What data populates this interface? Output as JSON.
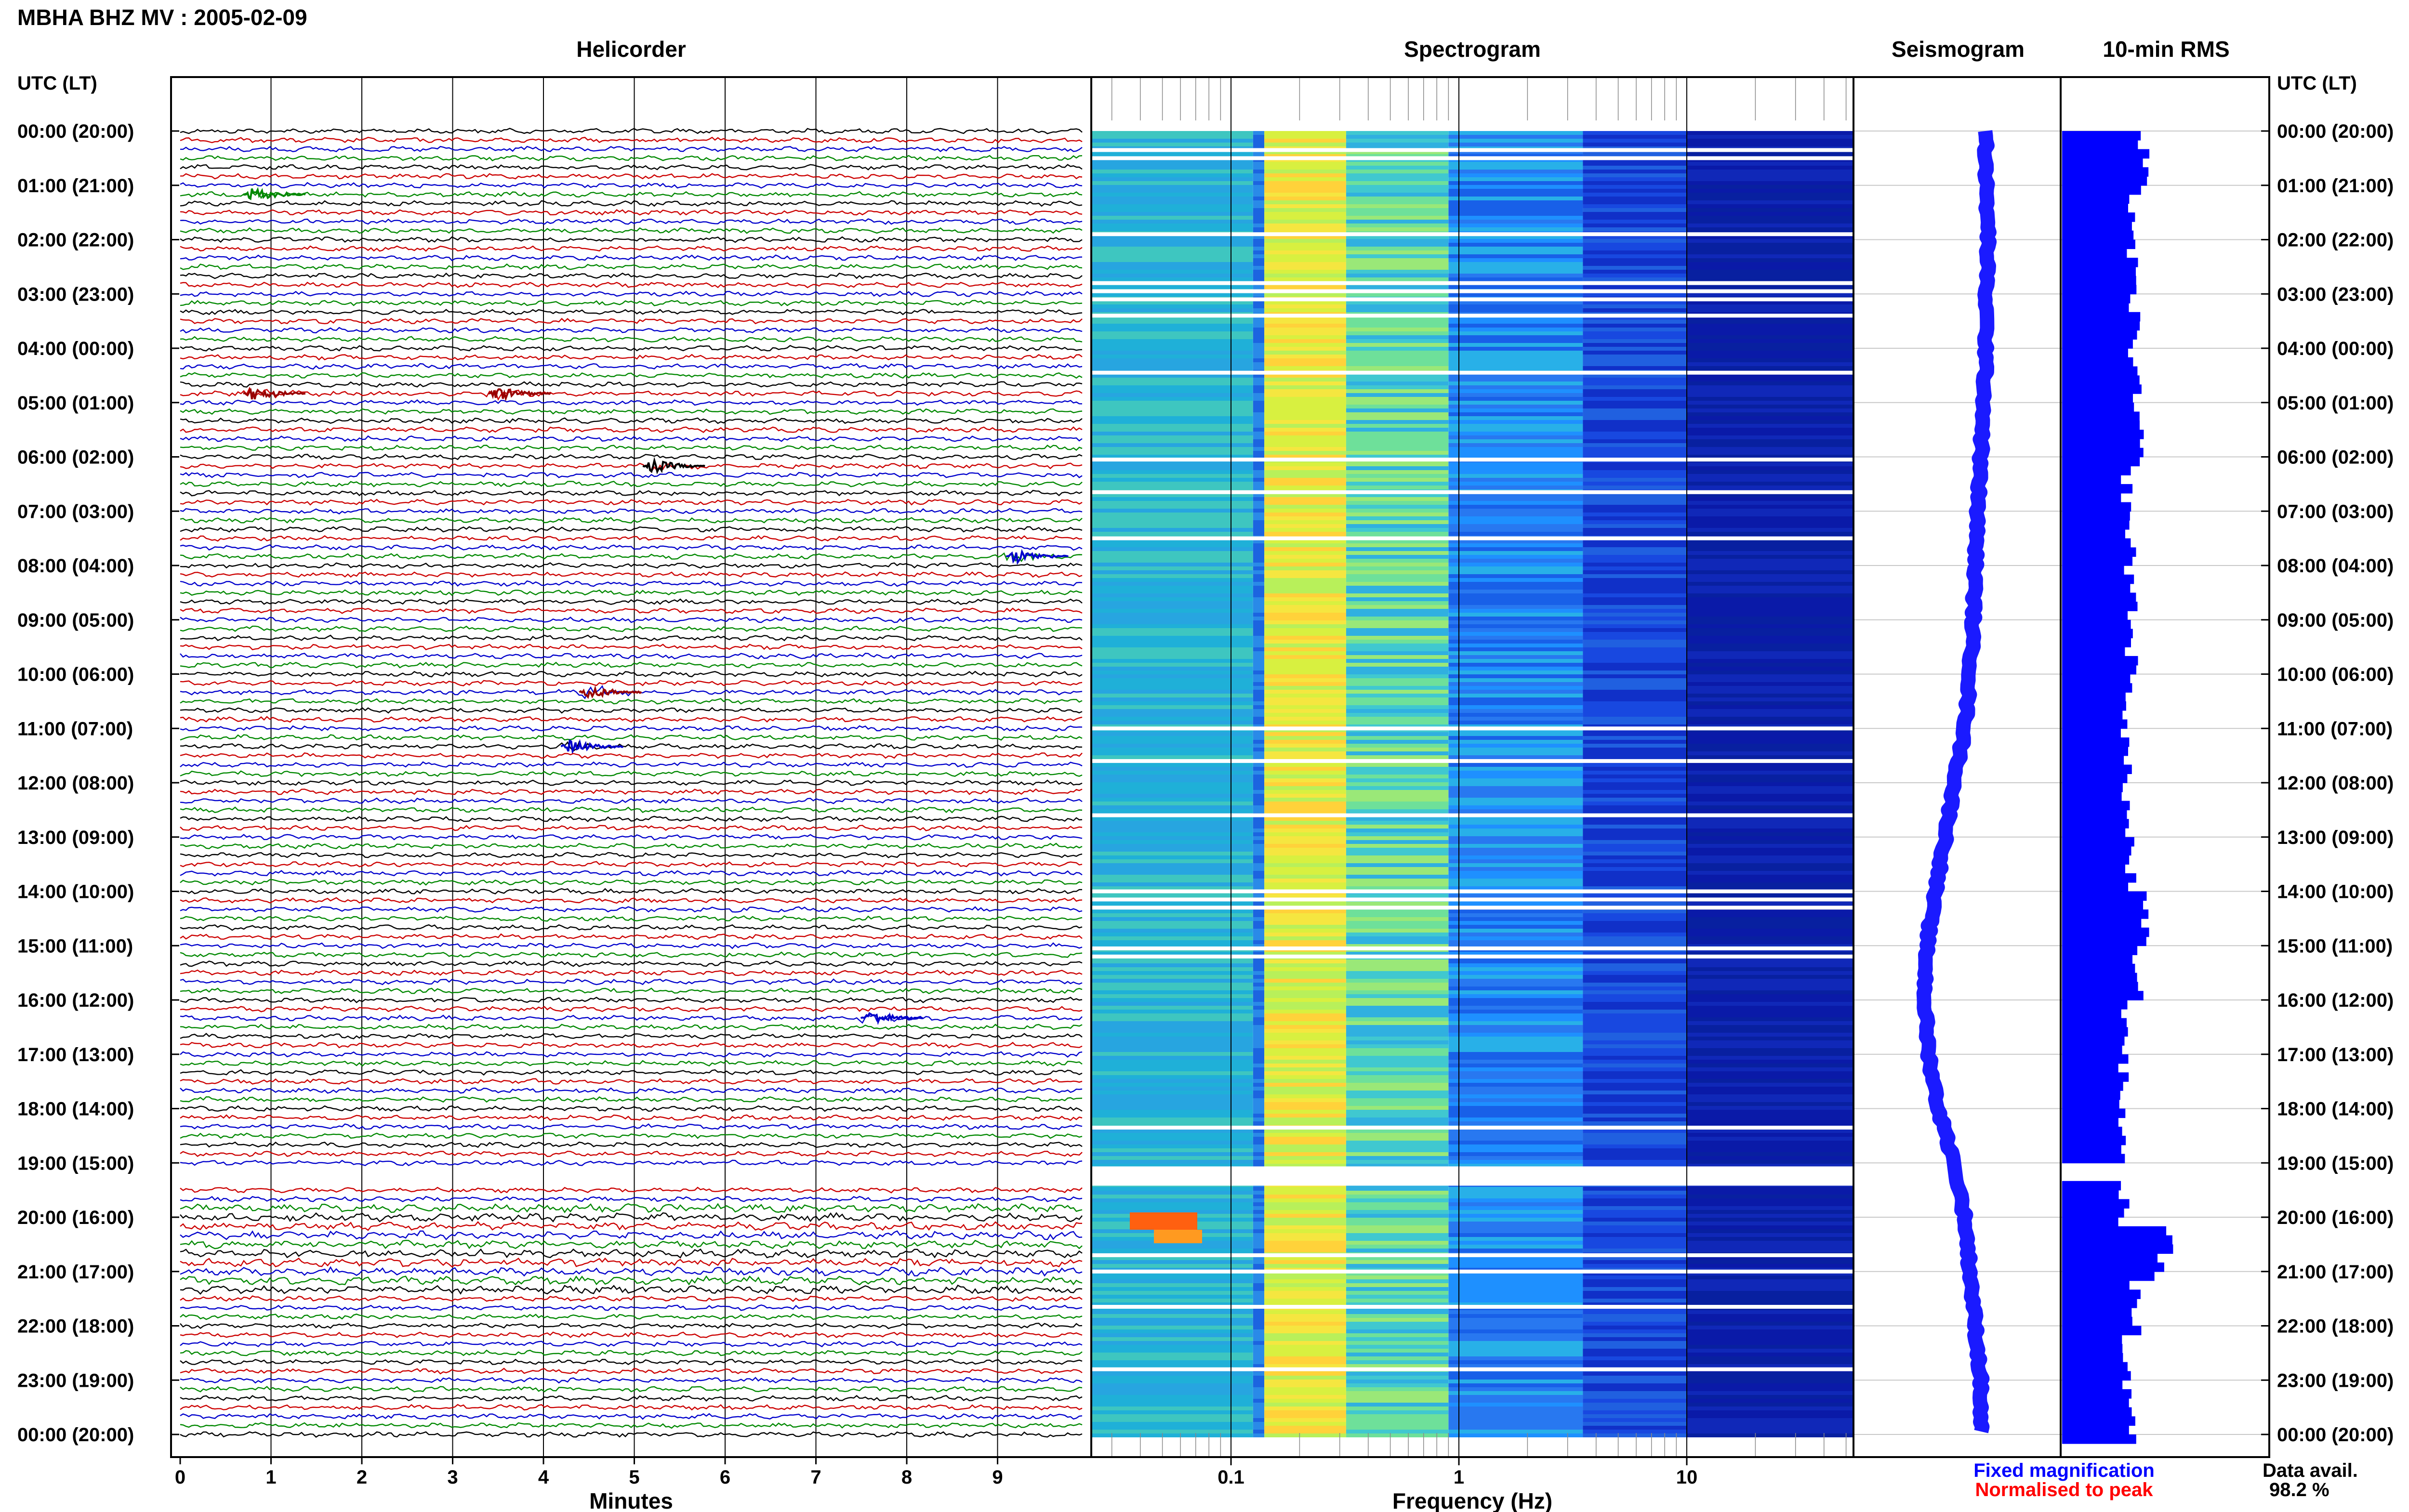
{
  "title": "MBHA BHZ MV : 2005-02-09",
  "panels": {
    "helicorder": "Helicorder",
    "spectrogram": "Spectrogram",
    "seismogram": "Seismogram",
    "rms": "10-min RMS"
  },
  "time_axis_label": "UTC (LT)",
  "time_labels": [
    "00:00 (20:00)",
    "01:00 (21:00)",
    "02:00 (22:00)",
    "03:00 (23:00)",
    "04:00 (00:00)",
    "05:00 (01:00)",
    "06:00 (02:00)",
    "07:00 (03:00)",
    "08:00 (04:00)",
    "09:00 (05:00)",
    "10:00 (06:00)",
    "11:00 (07:00)",
    "12:00 (08:00)",
    "13:00 (09:00)",
    "14:00 (10:00)",
    "15:00 (11:00)",
    "16:00 (12:00)",
    "17:00 (13:00)",
    "18:00 (14:00)",
    "19:00 (15:00)",
    "20:00 (16:00)",
    "21:00 (17:00)",
    "22:00 (18:00)",
    "23:00 (19:00)",
    "00:00 (20:00)"
  ],
  "x_axes": {
    "minutes": {
      "label": "Minutes",
      "ticks": [
        "0",
        "1",
        "2",
        "3",
        "4",
        "5",
        "6",
        "7",
        "8",
        "9"
      ]
    },
    "frequency": {
      "label": "Frequency (Hz)",
      "ticks": [
        "0.1",
        "1",
        "10"
      ],
      "scale": "log"
    }
  },
  "legend": {
    "fixed": "Fixed magnification",
    "normalised": "Normalised to peak",
    "fixed_color": "#0000ff",
    "normalised_color": "#ff0000"
  },
  "data_avail": {
    "label": "Data avail.",
    "value": "98.2 %"
  },
  "chart_data": {
    "type": "composite",
    "trace_colors": [
      "#000000",
      "#cc0000",
      "#0000cc",
      "#008800"
    ],
    "rows_per_hour": 6,
    "events": [
      {
        "row": 7,
        "minute": 0.8,
        "color": "green"
      },
      {
        "row": 29,
        "minute": 0.8,
        "color": "darkred"
      },
      {
        "row": 29,
        "minute": 3.5,
        "color": "darkred"
      },
      {
        "row": 37,
        "minute": 5.2,
        "color": "black"
      },
      {
        "row": 47,
        "minute": 9.2,
        "color": "blue"
      },
      {
        "row": 62,
        "minute": 4.5,
        "color": "darkred"
      },
      {
        "row": 68,
        "minute": 4.3,
        "color": "blue"
      },
      {
        "row": 98,
        "minute": 7.6,
        "color": "blue"
      }
    ],
    "data_gap_rows": [
      115,
      116
    ],
    "seismogram_offset": [
      0.1,
      0.1,
      0.12,
      0.1,
      0.1,
      0.08,
      0.05,
      0.02,
      0.0,
      -0.02,
      -0.05,
      -0.1,
      -0.2,
      -0.28,
      -0.38,
      -0.46,
      -0.48,
      -0.44,
      -0.35,
      -0.2,
      -0.1,
      -0.05,
      0.0,
      0.05,
      0.05
    ],
    "rms_values": [
      0.55,
      0.5,
      0.48,
      0.5,
      0.5,
      0.52,
      0.45,
      0.47,
      0.49,
      0.48,
      0.46,
      0.44,
      0.45,
      0.47,
      0.55,
      0.52,
      0.45,
      0.42,
      0.42,
      0.43,
      0.7,
      0.5,
      0.45,
      0.48,
      0.43
    ],
    "spectrogram_gap_hours": [
      0.35,
      0.5,
      1.9,
      2.8,
      2.95,
      3.1,
      3.4,
      4.45,
      6.05,
      6.65,
      7.5,
      11.0,
      11.6,
      12.6,
      14.0,
      14.15,
      14.3,
      15.05,
      15.2,
      18.35,
      19.1,
      19.3,
      20.7,
      21.0,
      21.65,
      22.8
    ]
  }
}
